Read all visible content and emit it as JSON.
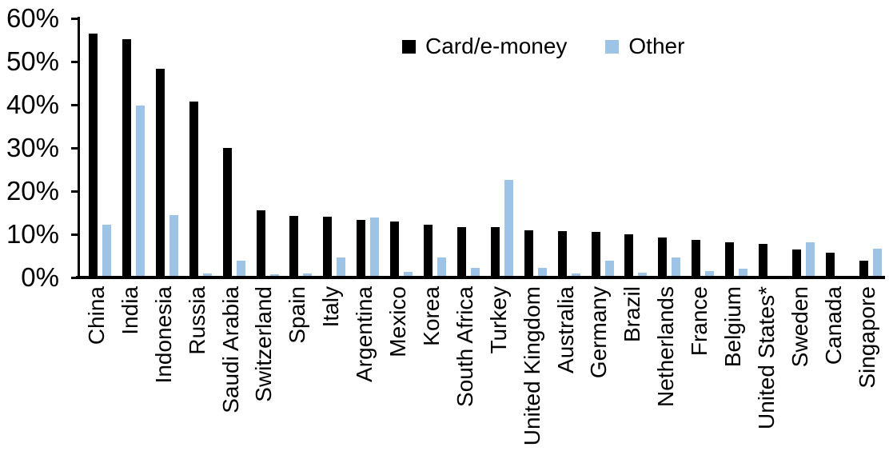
{
  "chart_data": {
    "type": "bar",
    "title": "",
    "categories": [
      "China",
      "India",
      "Indonesia",
      "Russia",
      "Saudi Arabia",
      "Switzerland",
      "Spain",
      "Italy",
      "Argentina",
      "Mexico",
      "Korea",
      "South Africa",
      "Turkey",
      "United Kingdom",
      "Australia",
      "Germany",
      "Brazil",
      "Netherlands",
      "France",
      "Belgium",
      "United States*",
      "Sweden",
      "Canada",
      "Singapore"
    ],
    "series": [
      {
        "name": "Card/e-money",
        "color": "#000000",
        "values": [
          56.5,
          55.2,
          48.4,
          40.7,
          30.0,
          15.6,
          14.2,
          14.1,
          13.3,
          12.9,
          12.2,
          11.7,
          11.6,
          11.0,
          10.7,
          10.5,
          10.0,
          9.3,
          8.7,
          8.2,
          7.8,
          6.4,
          5.8,
          3.9
        ]
      },
      {
        "name": "Other",
        "color": "#9DC3E6",
        "values": [
          12.2,
          39.8,
          14.5,
          1.0,
          3.9,
          0.8,
          1.0,
          4.6,
          13.8,
          1.3,
          4.7,
          2.3,
          22.5,
          2.2,
          1.0,
          3.9,
          1.2,
          4.7,
          1.5,
          2.0,
          0.3,
          8.1,
          0.0,
          6.7
        ]
      }
    ],
    "xlabel": "",
    "ylabel": "",
    "ylim": [
      0,
      60
    ],
    "yticks": [
      0,
      10,
      20,
      30,
      40,
      50,
      60
    ],
    "ytick_labels": [
      "0%",
      "10%",
      "20%",
      "30%",
      "40%",
      "50%",
      "60%"
    ],
    "grid": false,
    "legend_position": "top-center",
    "x_tick_label_rotation": 90
  }
}
